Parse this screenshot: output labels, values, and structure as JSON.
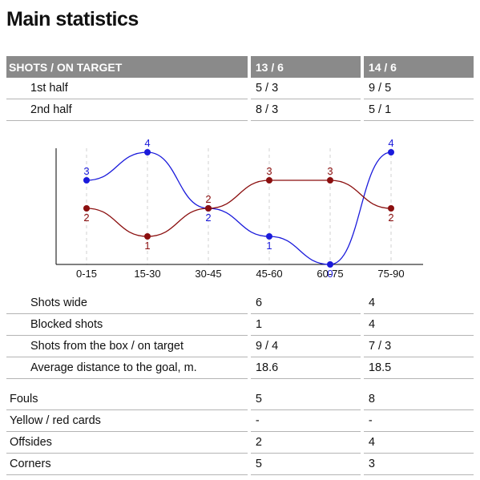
{
  "title": "Main statistics",
  "header": {
    "label": "SHOTS / ON TARGET",
    "team_a": "13 / 6",
    "team_b": "14 / 6"
  },
  "halves": [
    {
      "label": "1st half",
      "a": "5 / 3",
      "b": "9 / 5"
    },
    {
      "label": "2nd half",
      "a": "8 / 3",
      "b": "5 / 1"
    }
  ],
  "shot_details": [
    {
      "label": "Shots wide",
      "a": "6",
      "b": "4"
    },
    {
      "label": "Blocked shots",
      "a": "1",
      "b": "4"
    },
    {
      "label": "Shots from the box / on target",
      "a": "9 / 4",
      "b": "7 / 3"
    },
    {
      "label": "Average distance to the goal, m.",
      "a": "18.6",
      "b": "18.5"
    }
  ],
  "discipline": [
    {
      "label": "Fouls",
      "a": "5",
      "b": "8"
    },
    {
      "label": "Yellow / red cards",
      "a": "-",
      "b": "-"
    },
    {
      "label": "Offsides",
      "a": "2",
      "b": "4"
    },
    {
      "label": "Corners",
      "a": "5",
      "b": "3"
    }
  ],
  "chart_data": {
    "type": "line",
    "categories": [
      "0-15",
      "15-30",
      "30-45",
      "45-60",
      "60-75",
      "75-90"
    ],
    "series": [
      {
        "values": [
          3,
          4,
          2,
          1,
          0,
          4
        ],
        "color": "#1a1adb"
      },
      {
        "values": [
          2,
          1,
          2,
          3,
          3,
          2
        ],
        "color": "#8b0f0f"
      }
    ],
    "ylim": [
      0,
      4
    ],
    "grid": "vertical dashed"
  }
}
